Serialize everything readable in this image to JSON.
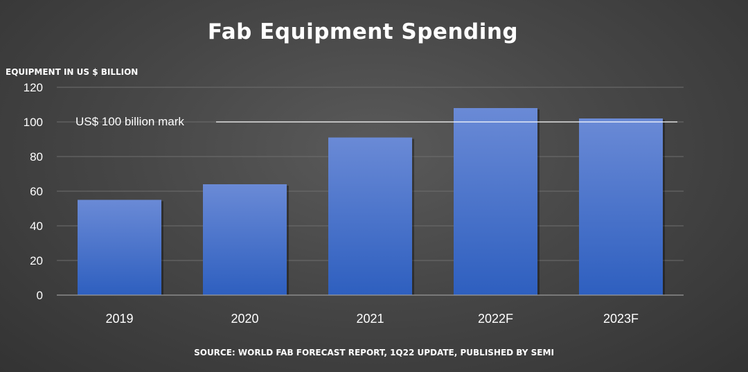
{
  "colors": {
    "bar_top": "#6a8ad6",
    "bar_bottom": "#2e5fbf",
    "text": "#ffffff"
  },
  "chart_data": {
    "type": "bar",
    "title": "Fab Equipment Spending",
    "ylabel": "EQUIPMENT IN US $ BILLION",
    "xlabel": "",
    "categories": [
      "2019",
      "2020",
      "2021",
      "2022F",
      "2023F"
    ],
    "values": [
      55,
      64,
      91,
      108,
      102
    ],
    "ylim": [
      0,
      120
    ],
    "yticks": [
      0,
      20,
      40,
      60,
      80,
      100,
      120
    ],
    "grid": true,
    "reference_line": {
      "value": 100,
      "label": "US$ 100 billion mark"
    },
    "source": "SOURCE: WORLD FAB FORECAST REPORT, 1Q22 UPDATE, PUBLISHED BY SEMI"
  }
}
